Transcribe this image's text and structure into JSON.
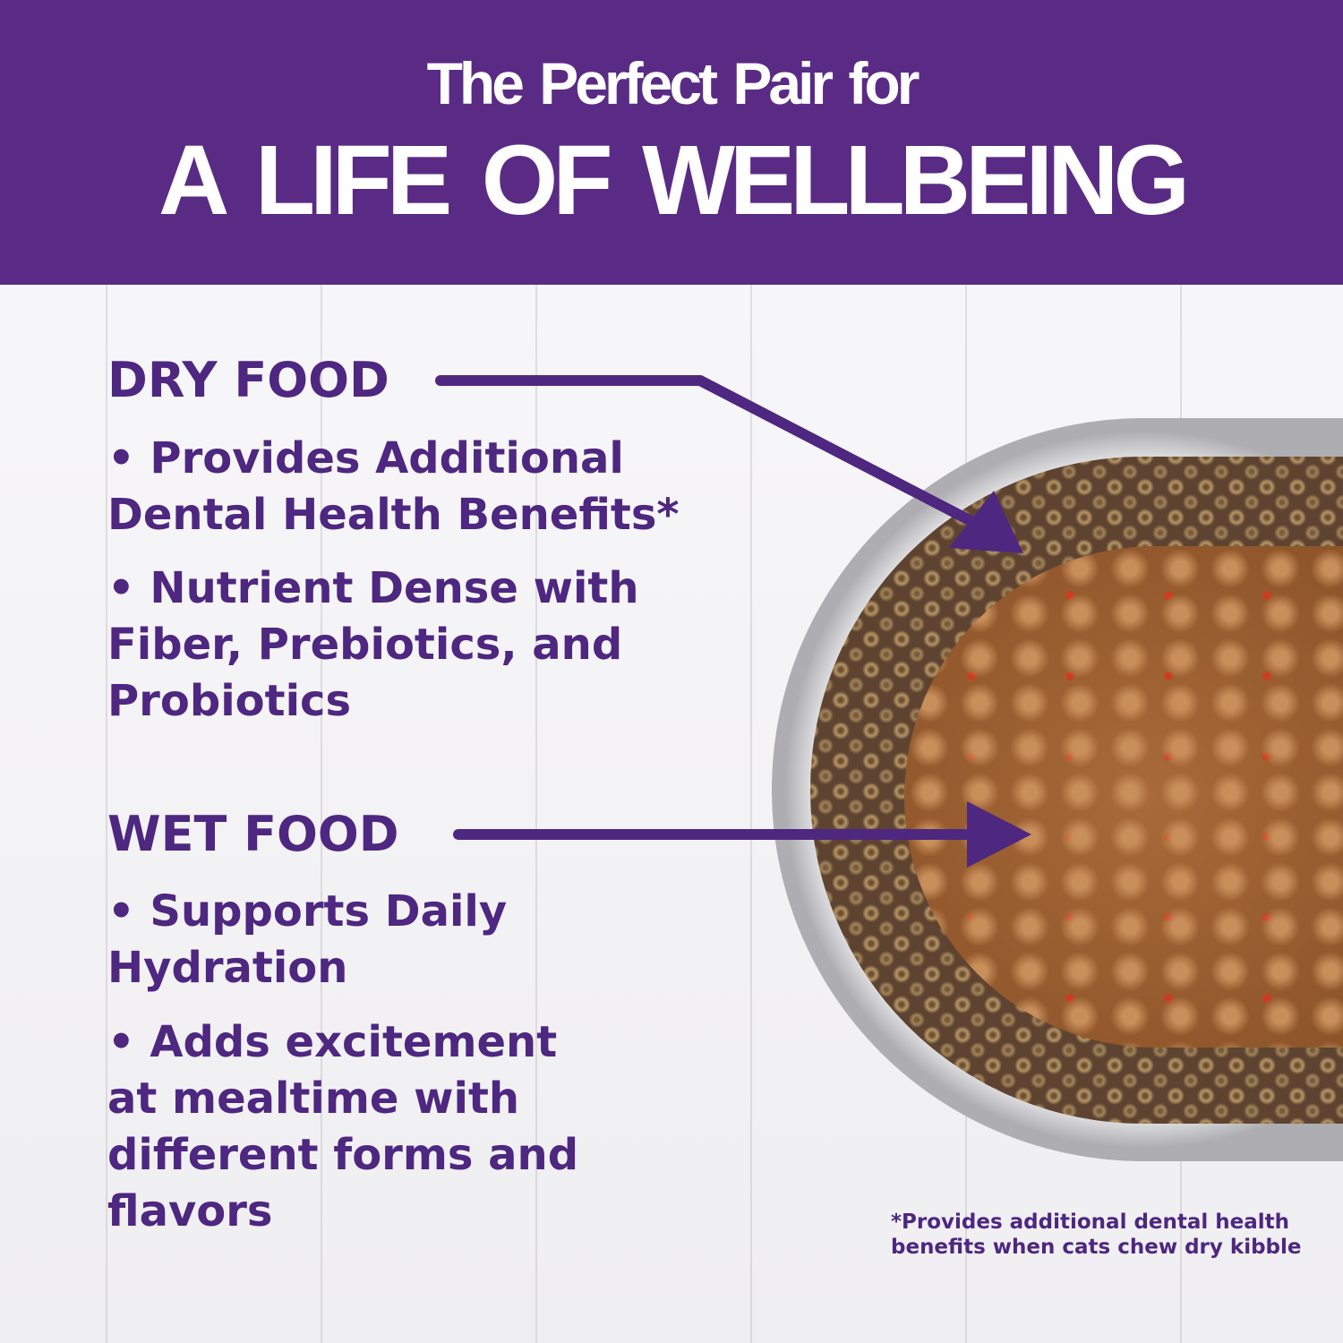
{
  "header": {
    "subtitle": "The Perfect Pair for",
    "title": "A LIFE OF WELLBEING"
  },
  "dry_food": {
    "title": "DRY FOOD",
    "bullets": [
      "• Provides Additional Dental Health Benefits*",
      "• Nutrient Dense with Fiber, Prebiotics, and Probiotics"
    ]
  },
  "wet_food": {
    "title": "WET FOOD",
    "bullets": [
      "• Supports Daily Hydration",
      "• Adds excitement at mealtime with different forms and flavors"
    ]
  },
  "footnote": {
    "line1": "*Provides additional dental health",
    "line2": "benefits when cats chew dry kibble"
  },
  "colors": {
    "brand_purple": "#5a2b85",
    "text_purple": "#4d2780"
  }
}
